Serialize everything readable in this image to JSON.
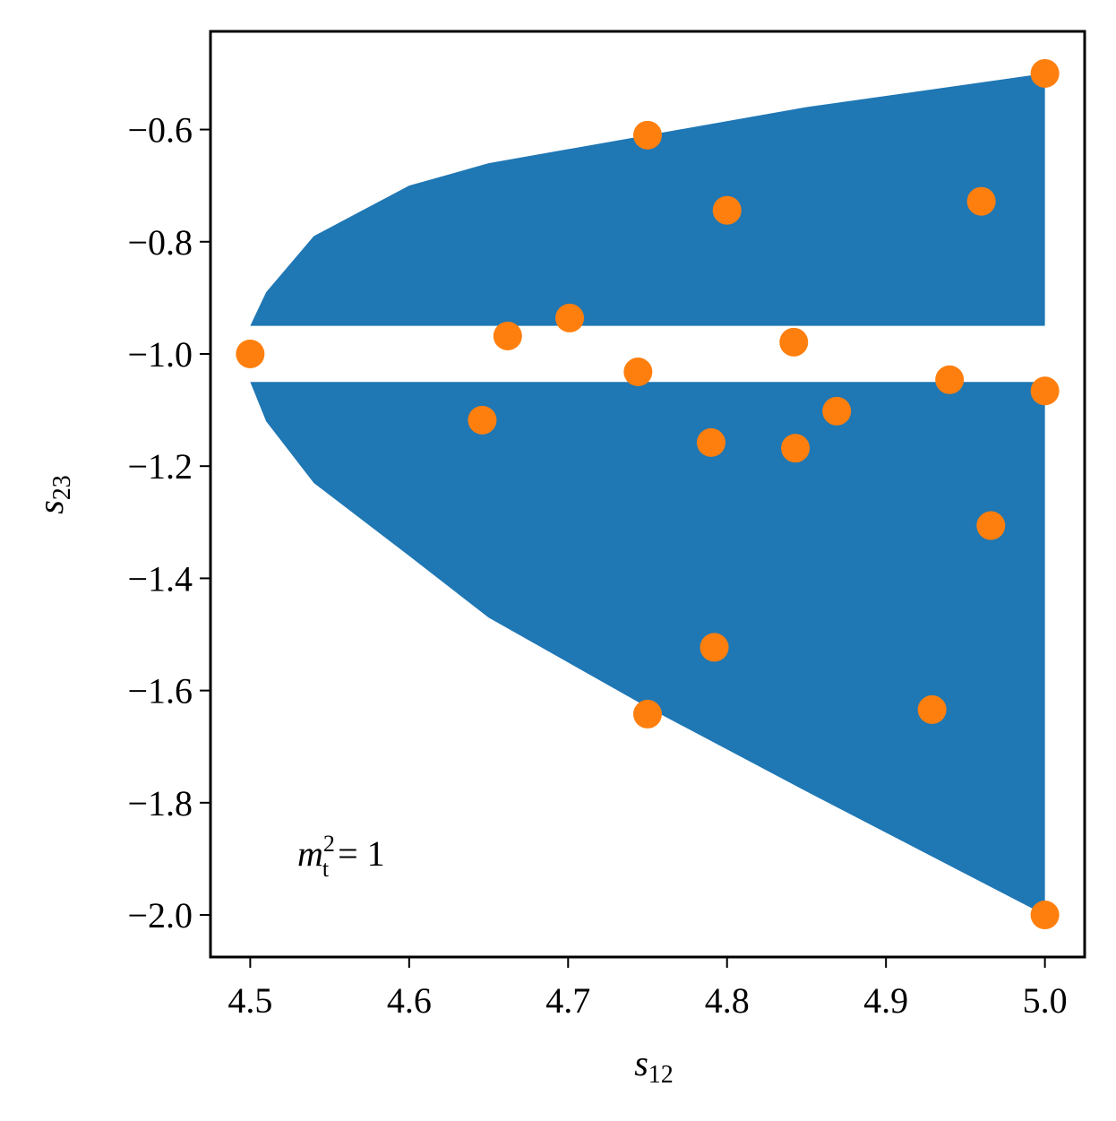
{
  "chart_data": {
    "type": "scatter",
    "xlabel": {
      "text": "s",
      "sub": "12"
    },
    "ylabel": {
      "text": "s",
      "sub": "23"
    },
    "annotation": {
      "text": "m",
      "sub": "t",
      "sup": "2",
      "rest": " = 1"
    },
    "xlim": [
      4.475,
      5.025
    ],
    "ylim": [
      -2.075,
      -0.425
    ],
    "xticks": [
      4.5,
      4.6,
      4.7,
      4.8,
      4.9,
      {
        "value": 5.0,
        "label": "5.0"
      }
    ],
    "yticks": [
      {
        "value": -0.6,
        "label": "−0.6"
      },
      {
        "value": -0.8,
        "label": "−0.8"
      },
      {
        "value": -1.0,
        "label": "−1.0"
      },
      {
        "value": -1.2,
        "label": "−1.2"
      },
      {
        "value": -1.4,
        "label": "−1.4"
      },
      {
        "value": -1.6,
        "label": "−1.6"
      },
      {
        "value": -1.8,
        "label": "−1.8"
      },
      {
        "value": -2.0,
        "label": "−2.0"
      }
    ],
    "bands": [
      {
        "color": "#1f77b4",
        "x": [
          4.5,
          4.51,
          4.54,
          4.6,
          4.65,
          4.75,
          4.85,
          5.0
        ],
        "y1": [
          -0.95,
          -0.89,
          -0.79,
          -0.7,
          -0.66,
          -0.61,
          -0.56,
          -0.5
        ],
        "y2": [
          -0.95,
          -0.95,
          -0.95,
          -0.95,
          -0.95,
          -0.95,
          -0.95,
          -0.95
        ]
      },
      {
        "color": "#1f77b4",
        "x": [
          4.5,
          4.51,
          4.54,
          4.6,
          4.65,
          4.75,
          4.85,
          5.0
        ],
        "y1": [
          -1.05,
          -1.05,
          -1.05,
          -1.05,
          -1.05,
          -1.05,
          -1.05,
          -1.05
        ],
        "y2": [
          -1.05,
          -1.12,
          -1.23,
          -1.36,
          -1.47,
          -1.63,
          -1.78,
          -2.0
        ]
      }
    ],
    "series": [
      {
        "color": "#ff7f0e",
        "x": [
          4.5,
          4.75,
          4.8,
          4.96,
          5.0,
          4.662,
          4.701,
          4.744,
          4.842,
          4.94,
          5.0,
          4.646,
          4.869,
          4.79,
          4.843,
          4.966,
          4.792,
          4.75,
          4.929,
          5.0
        ],
        "values": [
          -1.0,
          -0.61,
          -0.744,
          -0.728,
          -0.5,
          -0.968,
          -0.936,
          -1.032,
          -0.979,
          -1.046,
          -1.066,
          -1.118,
          -1.102,
          -1.158,
          -1.168,
          -1.306,
          -1.523,
          -1.642,
          -1.634,
          -2.0
        ]
      }
    ]
  }
}
